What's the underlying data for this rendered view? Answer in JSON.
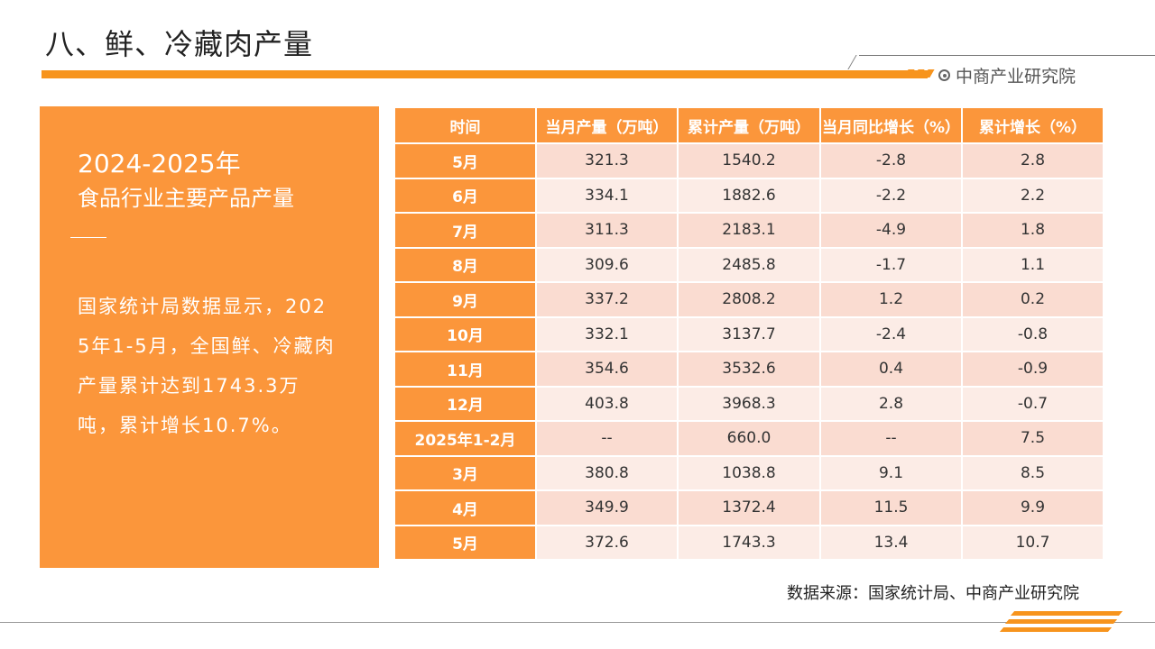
{
  "header": {
    "title": "八、鲜、冷藏肉产量",
    "brand": "中商产业研究院"
  },
  "panel": {
    "years": "2024-2025年",
    "subtitle": "食品行业主要产品产量",
    "description": "国家统计局数据显示，2025年1-5月，全国鲜、冷藏肉产量累计达到1743.3万吨，累计增长10.7%。"
  },
  "table": {
    "headers": [
      "时间",
      "当月产量（万吨）",
      "累计产量（万吨）",
      "当月同比增长（%）",
      "累计增长（%）"
    ],
    "rows": [
      [
        "5月",
        "321.3",
        "1540.2",
        "-2.8",
        "2.8"
      ],
      [
        "6月",
        "334.1",
        "1882.6",
        "-2.2",
        "2.2"
      ],
      [
        "7月",
        "311.3",
        "2183.1",
        "-4.9",
        "1.8"
      ],
      [
        "8月",
        "309.6",
        "2485.8",
        "-1.7",
        "1.1"
      ],
      [
        "9月",
        "337.2",
        "2808.2",
        "1.2",
        "0.2"
      ],
      [
        "10月",
        "332.1",
        "3137.7",
        "-2.4",
        "-0.8"
      ],
      [
        "11月",
        "354.6",
        "3532.6",
        "0.4",
        "-0.9"
      ],
      [
        "12月",
        "403.8",
        "3968.3",
        "2.8",
        "-0.7"
      ],
      [
        "2025年1-2月",
        "--",
        "660.0",
        "--",
        "7.5"
      ],
      [
        "3月",
        "380.8",
        "1038.8",
        "9.1",
        "8.5"
      ],
      [
        "4月",
        "349.9",
        "1372.4",
        "11.5",
        "9.9"
      ],
      [
        "5月",
        "372.6",
        "1743.3",
        "13.4",
        "10.7"
      ]
    ]
  },
  "source": "数据来源：国家统计局、中商产业研究院",
  "colors": {
    "accent": "#f7941d",
    "panel": "#fb963b",
    "row_odd": "#fadcd1",
    "row_even": "#fcece6"
  }
}
